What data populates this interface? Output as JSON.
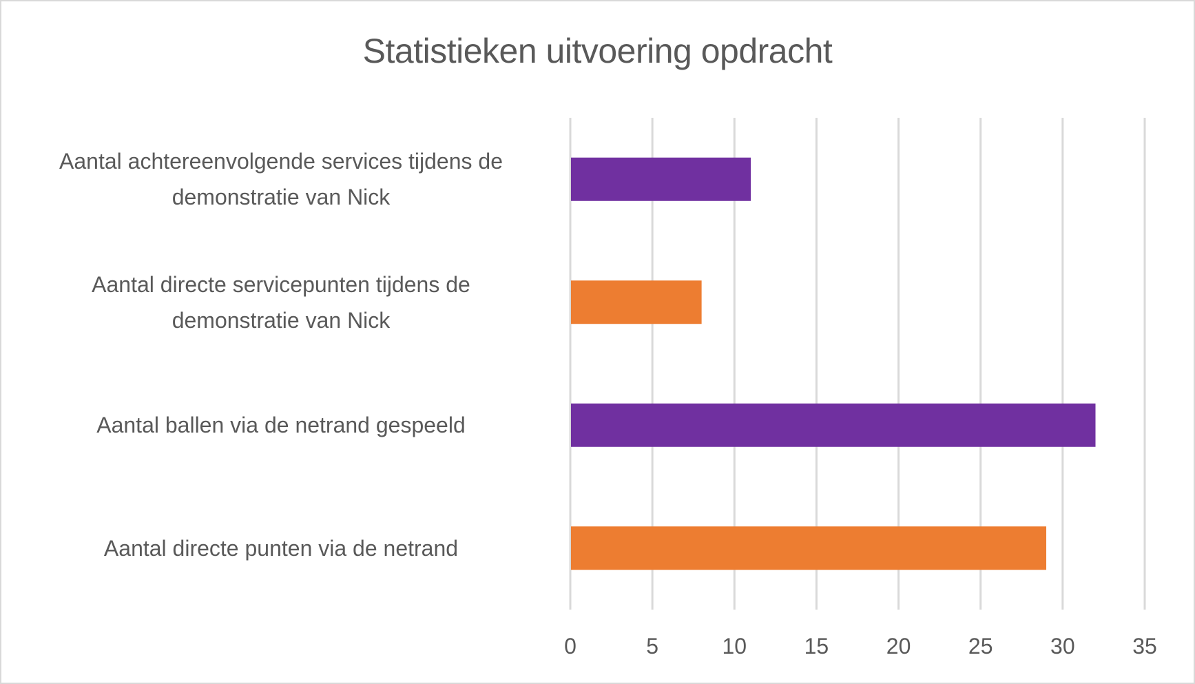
{
  "chart_data": {
    "type": "bar",
    "orientation": "horizontal",
    "title": "Statistieken uitvoering opdracht",
    "xlabel": "",
    "ylabel": "",
    "categories": [
      "Aantal achtereenvolgende services tijdens de demonstratie van Nick",
      "Aantal directe servicepunten tijdens de demonstratie van Nick",
      "Aantal ballen via de netrand gespeeld",
      "Aantal directe punten via de netrand"
    ],
    "category_lines": [
      [
        "Aantal achtereenvolgende services tijdens de",
        "demonstratie van Nick"
      ],
      [
        "Aantal directe servicepunten tijdens de",
        "demonstratie van Nick"
      ],
      [
        "Aantal ballen via de netrand gespeeld"
      ],
      [
        "Aantal directe punten via de netrand"
      ]
    ],
    "values": [
      11,
      8,
      32,
      29
    ],
    "bar_colors": [
      "#7030A0",
      "#ED7D31",
      "#7030A0",
      "#ED7D31"
    ],
    "xlim": [
      0,
      35
    ],
    "xticks": [
      0,
      5,
      10,
      15,
      20,
      25,
      30,
      35
    ],
    "xtick_labels": [
      "0",
      "5",
      "10",
      "15",
      "20",
      "25",
      "30",
      "35"
    ],
    "grid": "vertical",
    "legend": "none"
  }
}
